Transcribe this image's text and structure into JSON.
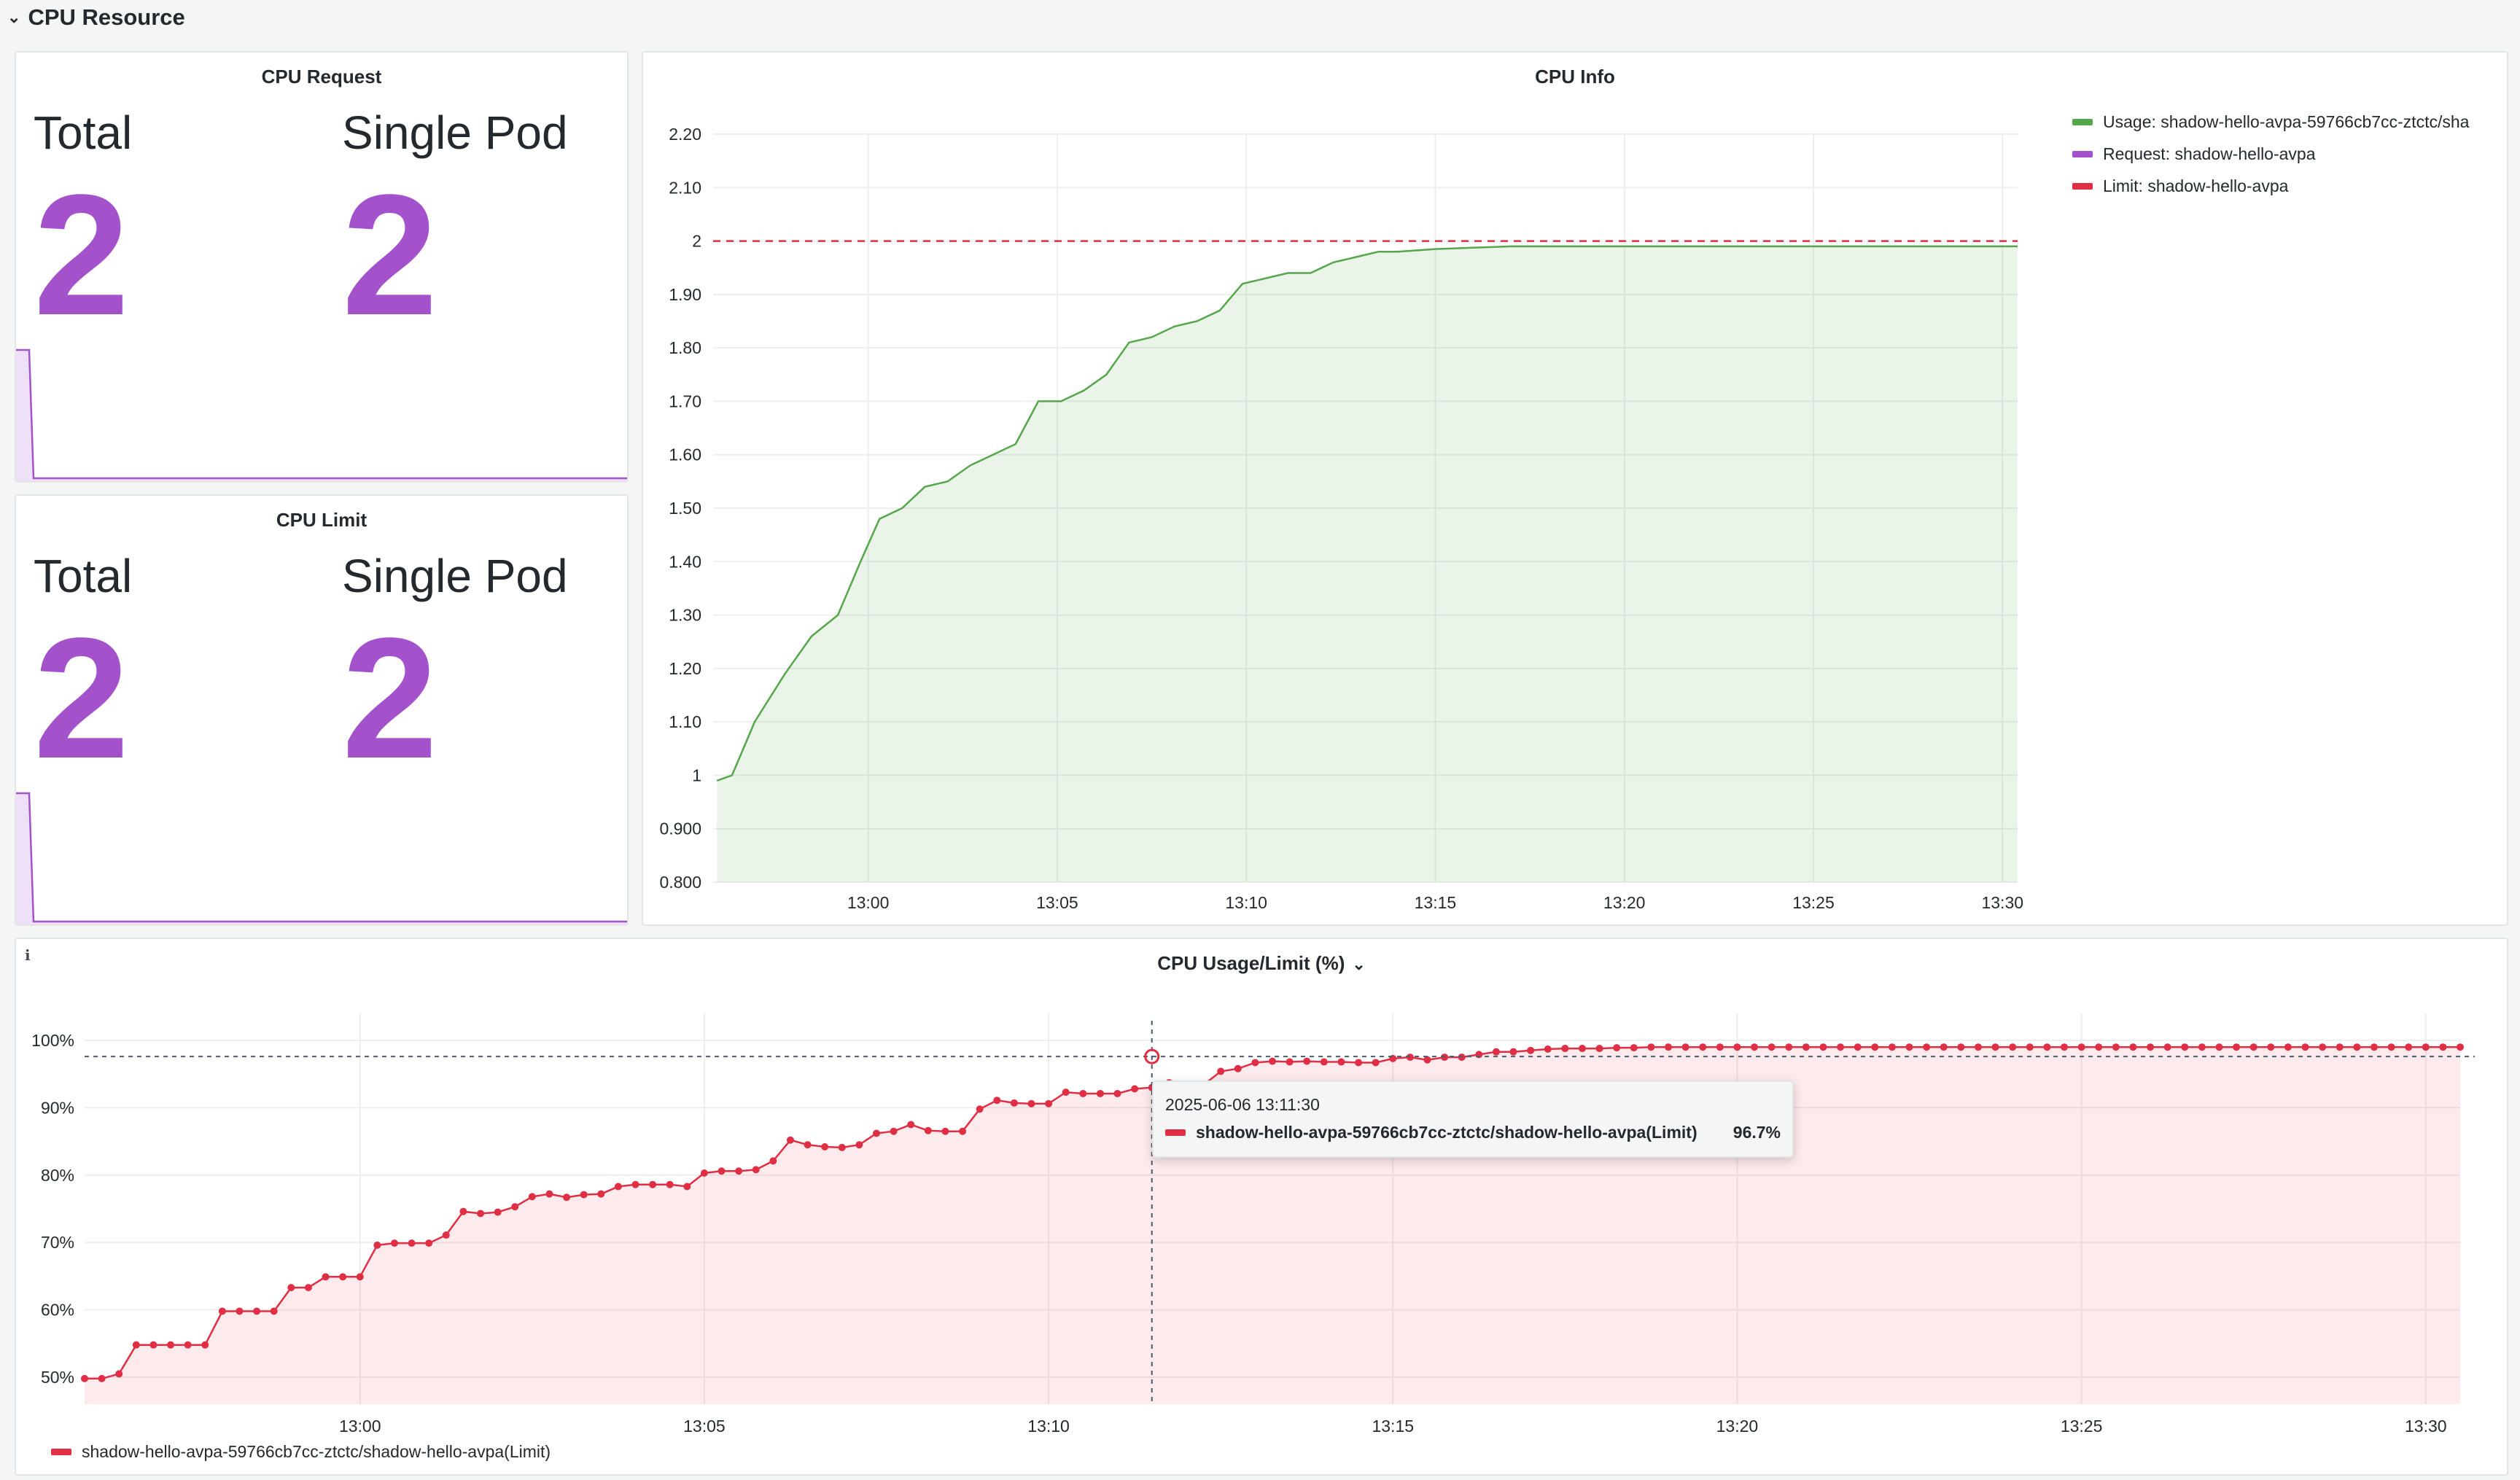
{
  "row": {
    "title": "CPU Resource"
  },
  "cpu_request": {
    "title": "CPU Request",
    "total_label": "Total",
    "total_value": "2",
    "single_label": "Single Pod",
    "single_value": "2"
  },
  "cpu_limit": {
    "title": "CPU Limit",
    "total_label": "Total",
    "total_value": "2",
    "single_label": "Single Pod",
    "single_value": "2"
  },
  "cpu_info": {
    "title": "CPU Info",
    "legend": [
      {
        "label": "Usage: shadow-hello-avpa-59766cb7cc-ztctc/sha",
        "color": "#56a64b"
      },
      {
        "label": "Request: shadow-hello-avpa",
        "color": "#a352cc"
      },
      {
        "label": "Limit: shadow-hello-avpa",
        "color": "#e02f44"
      }
    ]
  },
  "cpu_usage_limit": {
    "title": "CPU Usage/Limit (%)",
    "info_icon": "i",
    "legend_label": "shadow-hello-avpa-59766cb7cc-ztctc/shadow-hello-avpa(Limit)",
    "legend_color": "#e02f44",
    "tooltip": {
      "time": "2025-06-06 13:11:30",
      "series": "shadow-hello-avpa-59766cb7cc-ztctc/shadow-hello-avpa(Limit)",
      "value": "96.7%"
    }
  },
  "chart_data": [
    {
      "type": "area",
      "panel": "CPU Info",
      "x_start_minutes": -4.1,
      "x_end_minutes": 30.4,
      "x_ticks": [
        "13:00",
        "13:05",
        "13:10",
        "13:15",
        "13:20",
        "13:25",
        "13:30"
      ],
      "y_ticks": [
        "0.800",
        "0.900",
        "1",
        "1.10",
        "1.20",
        "1.30",
        "1.40",
        "1.50",
        "1.60",
        "1.70",
        "1.80",
        "1.90",
        "2",
        "2.10",
        "2.20"
      ],
      "ylim": [
        0.8,
        2.2
      ],
      "series": [
        {
          "name": "Usage: shadow-hello-avpa-59766cb7cc-ztctc/sha",
          "color": "#56a64b",
          "x": [
            -4,
            -3.6,
            -3,
            -2.2,
            -1.5,
            -0.8,
            -0.2,
            0.3,
            0.9,
            1.5,
            2.1,
            2.7,
            3.3,
            3.9,
            4.5,
            5.1,
            5.7,
            6.3,
            6.9,
            7.5,
            8.1,
            8.7,
            9.3,
            9.9,
            10.5,
            11.1,
            11.7,
            12.3,
            12.9,
            13.5,
            14,
            15,
            17,
            20,
            25,
            30.4
          ],
          "values": [
            0.99,
            1,
            1.1,
            1.19,
            1.26,
            1.3,
            1.4,
            1.48,
            1.5,
            1.54,
            1.55,
            1.58,
            1.6,
            1.62,
            1.7,
            1.7,
            1.72,
            1.75,
            1.81,
            1.82,
            1.84,
            1.85,
            1.87,
            1.92,
            1.93,
            1.94,
            1.94,
            1.96,
            1.97,
            1.98,
            1.98,
            1.985,
            1.99,
            1.99,
            1.99,
            1.99
          ]
        }
      ],
      "reference_lines": [
        {
          "name": "Limit: shadow-hello-avpa",
          "value": 2,
          "color": "#e02f44",
          "style": "dashed"
        }
      ]
    },
    {
      "type": "line",
      "panel": "CPU Usage/Limit (%)",
      "x_start_minutes": -4,
      "x_end_minutes": 30.5,
      "x_ticks": [
        "13:00",
        "13:05",
        "13:10",
        "13:15",
        "13:20",
        "13:25",
        "13:30"
      ],
      "y_ticks": [
        "50%",
        "60%",
        "70%",
        "80%",
        "90%",
        "100%"
      ],
      "ylim": [
        46,
        104
      ],
      "crosshair_minutes": 11.5,
      "crosshair_value": 97.6,
      "series": [
        {
          "name": "shadow-hello-avpa-59766cb7cc-ztctc/shadow-hello-avpa(Limit)",
          "color": "#e02f44",
          "interval_minutes": 0.25,
          "values": [
            49.8,
            49.8,
            50.5,
            54.8,
            54.8,
            54.8,
            54.8,
            54.8,
            59.8,
            59.8,
            59.8,
            59.8,
            63.3,
            63.3,
            64.9,
            64.9,
            64.9,
            69.6,
            69.9,
            69.9,
            69.9,
            71.1,
            74.6,
            74.3,
            74.5,
            75.3,
            76.8,
            77.2,
            76.7,
            77.1,
            77.2,
            78.3,
            78.6,
            78.6,
            78.6,
            78.3,
            80.3,
            80.6,
            80.6,
            80.8,
            82.1,
            85.2,
            84.5,
            84.2,
            84.1,
            84.5,
            86.2,
            86.5,
            87.5,
            86.6,
            86.5,
            86.5,
            89.8,
            91.1,
            90.7,
            90.6,
            90.6,
            92.3,
            92.1,
            92.1,
            92.1,
            92.8,
            93,
            93.7,
            93.4,
            93.4,
            95.4,
            95.8,
            96.7,
            96.9,
            96.8,
            96.9,
            96.8,
            96.8,
            96.7,
            96.7,
            97.3,
            97.5,
            97.1,
            97.5,
            97.5,
            97.9,
            98.3,
            98.3,
            98.5,
            98.7,
            98.8,
            98.8,
            98.8,
            98.9,
            98.9,
            99,
            99,
            99,
            99,
            99,
            99,
            99,
            99,
            99,
            99,
            99,
            99,
            99,
            99,
            99,
            99,
            99,
            99,
            99,
            99,
            99,
            99,
            99,
            99,
            99,
            99,
            99,
            99,
            99,
            99,
            99,
            99,
            99,
            99,
            99,
            99,
            99,
            99,
            99,
            99,
            99,
            99,
            99,
            99,
            99,
            99,
            99,
            99
          ]
        }
      ]
    },
    {
      "type": "area",
      "panel": "CPU Request",
      "series": [
        {
          "name": "sparkline",
          "color": "#a352cc",
          "values": [
            2,
            2,
            0,
            0,
            0,
            0,
            0,
            0,
            0,
            0,
            0,
            0
          ]
        }
      ]
    },
    {
      "type": "area",
      "panel": "CPU Limit",
      "series": [
        {
          "name": "sparkline",
          "color": "#a352cc",
          "values": [
            2,
            2,
            0,
            0,
            0,
            0,
            0,
            0,
            0,
            0,
            0,
            0
          ]
        }
      ]
    }
  ]
}
